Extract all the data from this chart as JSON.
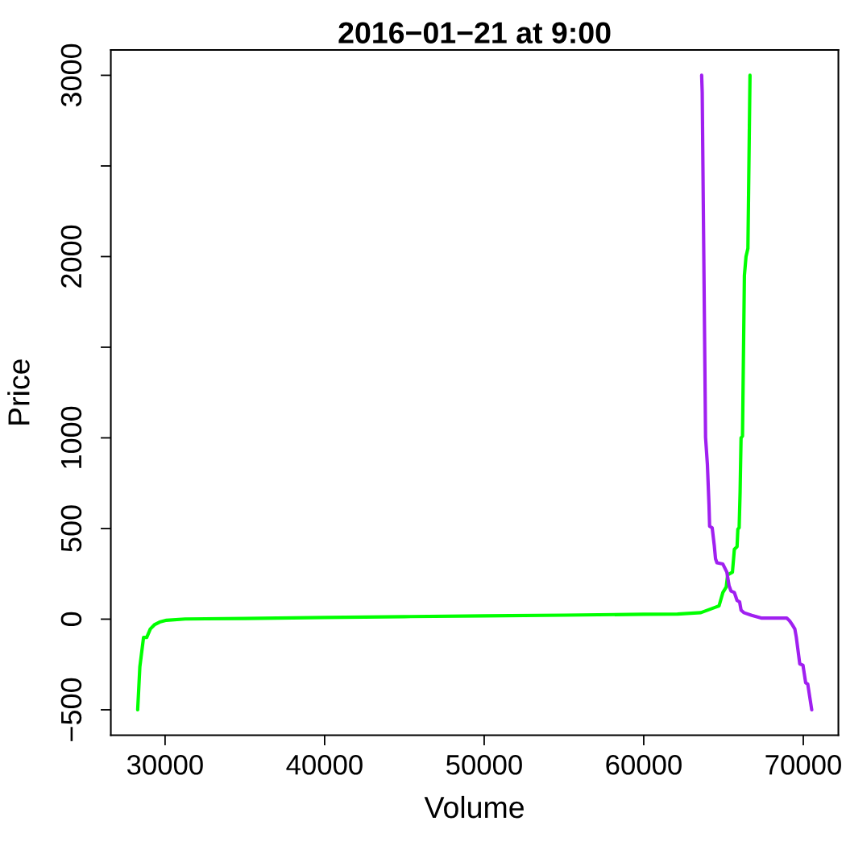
{
  "chart_data": {
    "type": "line",
    "title": "2016−01−21 at 9:00",
    "xlabel": "Volume",
    "ylabel": "Price",
    "series": [
      {
        "color": "#00ff00",
        "x": [
          28283,
          28420,
          28650,
          28850,
          29075,
          29330,
          29660,
          30085,
          31260,
          35000,
          40000,
          45000,
          50000,
          55000,
          60000,
          62115,
          63580,
          64500,
          64720,
          64960,
          65170,
          65260,
          65560,
          65680,
          65850,
          65900,
          65980,
          66040,
          66100,
          66190,
          66310,
          66410,
          66530,
          66660
        ],
        "values": [
          -500,
          -262,
          -101,
          -101,
          -54,
          -31,
          -16,
          -6,
          1,
          4,
          9,
          14,
          18,
          22,
          27,
          28,
          36,
          66,
          73,
          147,
          177,
          244,
          259,
          385,
          400,
          497,
          504,
          700,
          1000,
          1010,
          1896,
          2000,
          2045,
          3000
        ]
      },
      {
        "color": "#a020f0",
        "x": [
          63630,
          63665,
          63875,
          63990,
          64090,
          64130,
          64290,
          64420,
          64500,
          64590,
          64960,
          65210,
          65350,
          65470,
          65680,
          65850,
          66010,
          66100,
          66270,
          66770,
          67360,
          68960,
          69140,
          69310,
          69470,
          69560,
          69780,
          69980,
          70150,
          70280,
          70530
        ],
        "values": [
          3000,
          2907,
          1003,
          854,
          631,
          512,
          504,
          408,
          333,
          311,
          304,
          259,
          184,
          155,
          147,
          103,
          95,
          50,
          36,
          21,
          6,
          6,
          -9,
          -31,
          -54,
          -98,
          -247,
          -254,
          -351,
          -358,
          -500
        ]
      }
    ],
    "xlim": [
      26600,
      72200
    ],
    "ylim": [
      -640,
      3140
    ],
    "xticks": [
      30000,
      40000,
      50000,
      60000,
      70000
    ],
    "yticks": [
      {
        "value": -500,
        "label": "−500"
      },
      0,
      500,
      1000,
      {
        "value": 1500,
        "label": null
      },
      2000,
      {
        "value": 2500,
        "label": null
      },
      3000
    ],
    "line_style": "solid"
  }
}
